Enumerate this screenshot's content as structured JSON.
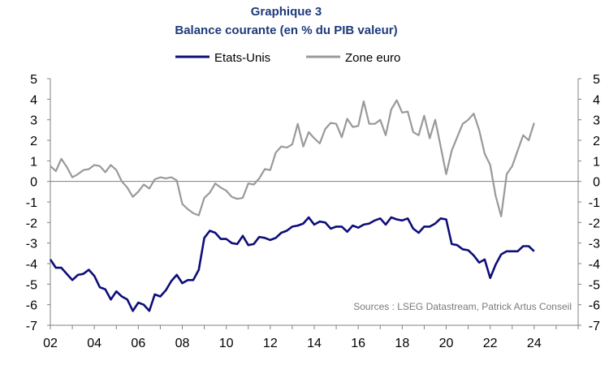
{
  "title_line1": "Graphique 3",
  "title_line2": "Balance courante (en % du PIB valeur)",
  "source": "Sources : LSEG Datastream, Patrick Artus Conseil",
  "colors": {
    "us": "#0d0d7a",
    "euro": "#999999",
    "axis": "#808080",
    "title": "#1f3a7a"
  },
  "chart_data": {
    "type": "line",
    "title": "Balance courante (en % du PIB valeur)",
    "xlabel": "",
    "ylabel": "",
    "xlim": [
      2002,
      2026
    ],
    "ylim": [
      -7,
      5
    ],
    "x_ticks": [
      "02",
      "04",
      "06",
      "08",
      "10",
      "12",
      "14",
      "16",
      "18",
      "20",
      "22",
      "24"
    ],
    "y_ticks": [
      "5",
      "4",
      "3",
      "2",
      "1",
      "0",
      "-1",
      "-2",
      "-3",
      "-4",
      "-5",
      "-6",
      "-7"
    ],
    "legend_position": "top",
    "series": [
      {
        "name": "Etats-Unis",
        "color": "#0d0d7a",
        "points": [
          [
            2002.0,
            -3.8
          ],
          [
            2002.25,
            -4.2
          ],
          [
            2002.5,
            -4.2
          ],
          [
            2002.75,
            -4.5
          ],
          [
            2003.0,
            -4.8
          ],
          [
            2003.25,
            -4.55
          ],
          [
            2003.5,
            -4.5
          ],
          [
            2003.75,
            -4.3
          ],
          [
            2004.0,
            -4.6
          ],
          [
            2004.25,
            -5.15
          ],
          [
            2004.5,
            -5.25
          ],
          [
            2004.75,
            -5.75
          ],
          [
            2005.0,
            -5.35
          ],
          [
            2005.25,
            -5.6
          ],
          [
            2005.5,
            -5.75
          ],
          [
            2005.75,
            -6.3
          ],
          [
            2006.0,
            -5.9
          ],
          [
            2006.25,
            -6.0
          ],
          [
            2006.5,
            -6.3
          ],
          [
            2006.75,
            -5.5
          ],
          [
            2007.0,
            -5.6
          ],
          [
            2007.25,
            -5.3
          ],
          [
            2007.5,
            -4.85
          ],
          [
            2007.75,
            -4.55
          ],
          [
            2008.0,
            -4.95
          ],
          [
            2008.25,
            -4.8
          ],
          [
            2008.5,
            -4.8
          ],
          [
            2008.75,
            -4.3
          ],
          [
            2009.0,
            -2.75
          ],
          [
            2009.25,
            -2.4
          ],
          [
            2009.5,
            -2.5
          ],
          [
            2009.75,
            -2.8
          ],
          [
            2010.0,
            -2.8
          ],
          [
            2010.25,
            -3.0
          ],
          [
            2010.5,
            -3.05
          ],
          [
            2010.75,
            -2.65
          ],
          [
            2011.0,
            -3.1
          ],
          [
            2011.25,
            -3.05
          ],
          [
            2011.5,
            -2.7
          ],
          [
            2011.75,
            -2.75
          ],
          [
            2012.0,
            -2.85
          ],
          [
            2012.25,
            -2.75
          ],
          [
            2012.5,
            -2.5
          ],
          [
            2012.75,
            -2.4
          ],
          [
            2013.0,
            -2.2
          ],
          [
            2013.25,
            -2.15
          ],
          [
            2013.5,
            -2.05
          ],
          [
            2013.75,
            -1.75
          ],
          [
            2014.0,
            -2.1
          ],
          [
            2014.25,
            -1.95
          ],
          [
            2014.5,
            -2.0
          ],
          [
            2014.75,
            -2.3
          ],
          [
            2015.0,
            -2.2
          ],
          [
            2015.25,
            -2.2
          ],
          [
            2015.5,
            -2.45
          ],
          [
            2015.75,
            -2.15
          ],
          [
            2016.0,
            -2.25
          ],
          [
            2016.25,
            -2.1
          ],
          [
            2016.5,
            -2.05
          ],
          [
            2016.75,
            -1.9
          ],
          [
            2017.0,
            -1.8
          ],
          [
            2017.25,
            -2.1
          ],
          [
            2017.5,
            -1.75
          ],
          [
            2017.75,
            -1.85
          ],
          [
            2018.0,
            -1.9
          ],
          [
            2018.25,
            -1.8
          ],
          [
            2018.5,
            -2.3
          ],
          [
            2018.75,
            -2.5
          ],
          [
            2019.0,
            -2.2
          ],
          [
            2019.25,
            -2.2
          ],
          [
            2019.5,
            -2.05
          ],
          [
            2019.75,
            -1.8
          ],
          [
            2020.0,
            -1.85
          ],
          [
            2020.25,
            -3.05
          ],
          [
            2020.5,
            -3.1
          ],
          [
            2020.75,
            -3.3
          ],
          [
            2021.0,
            -3.35
          ],
          [
            2021.25,
            -3.6
          ],
          [
            2021.5,
            -3.95
          ],
          [
            2021.75,
            -3.8
          ],
          [
            2022.0,
            -4.7
          ],
          [
            2022.25,
            -4.05
          ],
          [
            2022.5,
            -3.55
          ],
          [
            2022.75,
            -3.4
          ],
          [
            2023.0,
            -3.4
          ],
          [
            2023.25,
            -3.4
          ],
          [
            2023.5,
            -3.15
          ],
          [
            2023.75,
            -3.15
          ],
          [
            2024.0,
            -3.4
          ]
        ]
      },
      {
        "name": "Zone euro",
        "color": "#999999",
        "points": [
          [
            2002.0,
            0.75
          ],
          [
            2002.25,
            0.5
          ],
          [
            2002.5,
            1.1
          ],
          [
            2002.75,
            0.7
          ],
          [
            2003.0,
            0.2
          ],
          [
            2003.25,
            0.35
          ],
          [
            2003.5,
            0.55
          ],
          [
            2003.75,
            0.6
          ],
          [
            2004.0,
            0.8
          ],
          [
            2004.25,
            0.75
          ],
          [
            2004.5,
            0.45
          ],
          [
            2004.75,
            0.8
          ],
          [
            2005.0,
            0.55
          ],
          [
            2005.25,
            0.0
          ],
          [
            2005.5,
            -0.3
          ],
          [
            2005.75,
            -0.75
          ],
          [
            2006.0,
            -0.5
          ],
          [
            2006.25,
            -0.15
          ],
          [
            2006.5,
            -0.35
          ],
          [
            2006.75,
            0.1
          ],
          [
            2007.0,
            0.2
          ],
          [
            2007.25,
            0.15
          ],
          [
            2007.5,
            0.2
          ],
          [
            2007.75,
            0.05
          ],
          [
            2008.0,
            -1.1
          ],
          [
            2008.25,
            -1.35
          ],
          [
            2008.5,
            -1.55
          ],
          [
            2008.75,
            -1.65
          ],
          [
            2009.0,
            -0.8
          ],
          [
            2009.25,
            -0.55
          ],
          [
            2009.5,
            -0.1
          ],
          [
            2009.75,
            -0.3
          ],
          [
            2010.0,
            -0.45
          ],
          [
            2010.25,
            -0.75
          ],
          [
            2010.5,
            -0.85
          ],
          [
            2010.75,
            -0.8
          ],
          [
            2011.0,
            -0.1
          ],
          [
            2011.25,
            -0.15
          ],
          [
            2011.5,
            0.15
          ],
          [
            2011.75,
            0.6
          ],
          [
            2012.0,
            0.55
          ],
          [
            2012.25,
            1.4
          ],
          [
            2012.5,
            1.7
          ],
          [
            2012.75,
            1.65
          ],
          [
            2013.0,
            1.8
          ],
          [
            2013.25,
            2.8
          ],
          [
            2013.5,
            1.7
          ],
          [
            2013.75,
            2.4
          ],
          [
            2014.0,
            2.1
          ],
          [
            2014.25,
            1.85
          ],
          [
            2014.5,
            2.55
          ],
          [
            2014.75,
            2.85
          ],
          [
            2015.0,
            2.8
          ],
          [
            2015.25,
            2.15
          ],
          [
            2015.5,
            3.05
          ],
          [
            2015.75,
            2.65
          ],
          [
            2016.0,
            2.7
          ],
          [
            2016.25,
            3.9
          ],
          [
            2016.5,
            2.8
          ],
          [
            2016.75,
            2.8
          ],
          [
            2017.0,
            3.0
          ],
          [
            2017.25,
            2.25
          ],
          [
            2017.5,
            3.5
          ],
          [
            2017.75,
            3.95
          ],
          [
            2018.0,
            3.35
          ],
          [
            2018.25,
            3.4
          ],
          [
            2018.5,
            2.4
          ],
          [
            2018.75,
            2.25
          ],
          [
            2019.0,
            3.2
          ],
          [
            2019.25,
            2.1
          ],
          [
            2019.5,
            3.0
          ],
          [
            2019.75,
            1.7
          ],
          [
            2020.0,
            0.35
          ],
          [
            2020.25,
            1.5
          ],
          [
            2020.5,
            2.15
          ],
          [
            2020.75,
            2.8
          ],
          [
            2021.0,
            3.0
          ],
          [
            2021.25,
            3.3
          ],
          [
            2021.5,
            2.5
          ],
          [
            2021.75,
            1.35
          ],
          [
            2022.0,
            0.8
          ],
          [
            2022.25,
            -0.7
          ],
          [
            2022.5,
            -1.7
          ],
          [
            2022.75,
            0.35
          ],
          [
            2023.0,
            0.75
          ],
          [
            2023.25,
            1.5
          ],
          [
            2023.5,
            2.25
          ],
          [
            2023.75,
            2.0
          ],
          [
            2024.0,
            2.85
          ]
        ]
      }
    ]
  }
}
